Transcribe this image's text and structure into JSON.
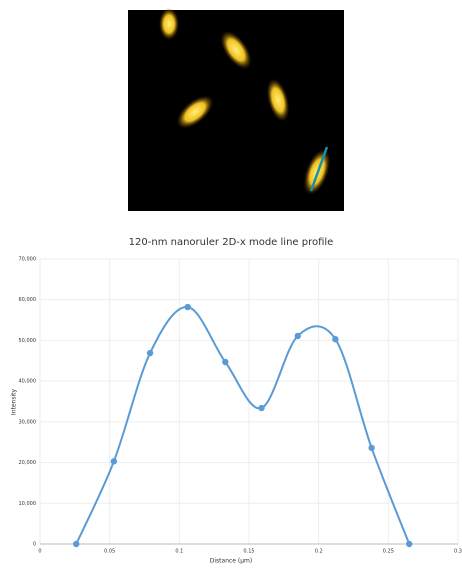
{
  "chart_data": {
    "type": "line",
    "title": "120-nm nanoruler 2D-x mode line profile",
    "x_label": "Distance (µm)",
    "y_label": "Intensity",
    "x": [
      0.026,
      0.053,
      0.079,
      0.106,
      0.133,
      0.159,
      0.185,
      0.212,
      0.238,
      0.265
    ],
    "series": [
      {
        "color": "#5b9bd5",
        "values": [
          0,
          20300,
          46900,
          58200,
          44700,
          33400,
          51100,
          50300,
          23600,
          0
        ]
      }
    ],
    "xlim": [
      0,
      0.3
    ],
    "xticks": [
      0,
      0.05,
      0.1,
      0.15,
      0.2,
      0.25,
      0.3
    ],
    "ylim": [
      0,
      70000
    ],
    "yticks": [
      0,
      {
        "value": 10000,
        "label": "10,000"
      },
      {
        "value": 20000,
        "label": "20,000"
      },
      {
        "value": 30000,
        "label": "30,000"
      },
      {
        "value": 40000,
        "label": "40,000"
      },
      {
        "value": 50000,
        "label": "50,000"
      },
      {
        "value": 60000,
        "label": "60,000"
      },
      {
        "value": 70000,
        "label": "70,000"
      }
    ],
    "grid": true,
    "smooth": true
  }
}
